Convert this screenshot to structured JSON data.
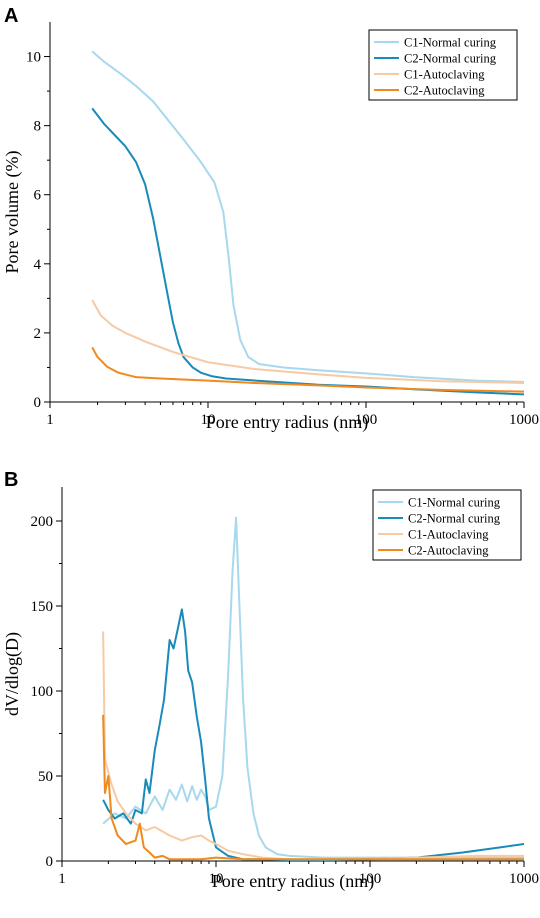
{
  "chart_data": [
    {
      "panel": "A",
      "type": "line",
      "xlabel": "Pore entry radius (nm)",
      "ylabel": "Pore volume (%)",
      "x_scale": "log",
      "xlim": [
        1,
        1000
      ],
      "ylim": [
        0,
        11
      ],
      "x_ticks": [
        1,
        10,
        100,
        1000
      ],
      "x_tick_labels": [
        "1",
        "10",
        "100",
        "1000"
      ],
      "y_ticks": [
        0,
        2,
        4,
        6,
        8,
        10
      ],
      "y_tick_labels": [
        "0",
        "2",
        "4",
        "6",
        "8",
        "10"
      ],
      "legend_position": "top-right",
      "grid": false,
      "series": [
        {
          "name": "C1-Normal curing",
          "color": "#a8d8ee",
          "x": [
            1.85,
            2.2,
            2.8,
            3.5,
            4.5,
            5.5,
            7,
            9,
            11,
            12.5,
            13.5,
            14.5,
            16,
            18,
            21,
            30,
            50,
            100,
            200,
            500,
            1000
          ],
          "y": [
            10.15,
            9.85,
            9.5,
            9.15,
            8.7,
            8.2,
            7.6,
            6.95,
            6.35,
            5.5,
            4.2,
            2.8,
            1.8,
            1.3,
            1.1,
            1.0,
            0.92,
            0.83,
            0.72,
            0.62,
            0.58
          ]
        },
        {
          "name": "C2-Normal curing",
          "color": "#1a8ab8",
          "x": [
            1.85,
            2.2,
            2.6,
            3.0,
            3.5,
            4.0,
            4.5,
            5.0,
            5.5,
            6.0,
            6.5,
            7.0,
            8.0,
            9.0,
            10.5,
            13,
            20,
            50,
            100,
            200,
            500,
            1000
          ],
          "y": [
            8.5,
            8.05,
            7.7,
            7.4,
            6.95,
            6.3,
            5.3,
            4.2,
            3.2,
            2.3,
            1.7,
            1.3,
            1.0,
            0.85,
            0.75,
            0.68,
            0.62,
            0.5,
            0.45,
            0.37,
            0.28,
            0.22
          ]
        },
        {
          "name": "C1-Autoclaving",
          "color": "#f6caa4",
          "x": [
            1.85,
            2.1,
            2.5,
            3.0,
            4.0,
            6.0,
            10,
            20,
            50,
            100,
            300,
            1000
          ],
          "y": [
            2.95,
            2.5,
            2.2,
            2.0,
            1.75,
            1.45,
            1.15,
            0.95,
            0.8,
            0.7,
            0.6,
            0.55
          ]
        },
        {
          "name": "C2-Autoclaving",
          "color": "#f08a1e",
          "x": [
            1.85,
            2.0,
            2.3,
            2.7,
            3.5,
            5.0,
            10,
            20,
            50,
            100,
            300,
            1000
          ],
          "y": [
            1.58,
            1.3,
            1.02,
            0.85,
            0.72,
            0.68,
            0.62,
            0.55,
            0.48,
            0.42,
            0.35,
            0.3
          ]
        }
      ]
    },
    {
      "panel": "B",
      "type": "line",
      "xlabel": "Pore entry radius (nm)",
      "ylabel": "dV/dlog(D)",
      "x_scale": "log",
      "xlim": [
        1,
        1000
      ],
      "ylim": [
        0,
        220
      ],
      "x_ticks": [
        1,
        10,
        100,
        1000
      ],
      "x_tick_labels": [
        "1",
        "10",
        "100",
        "1000"
      ],
      "y_ticks": [
        0,
        50,
        100,
        150,
        200
      ],
      "y_tick_labels": [
        "0",
        "50",
        "100",
        "150",
        "200"
      ],
      "legend_position": "top-right",
      "grid": false,
      "series": [
        {
          "name": "C1-Normal curing",
          "color": "#a8d8ee",
          "x": [
            1.85,
            2.2,
            2.6,
            3.0,
            3.5,
            4.0,
            4.5,
            5.0,
            5.5,
            6.0,
            6.5,
            7.0,
            7.5,
            8.0,
            8.5,
            9.0,
            10,
            11,
            12,
            12.8,
            13.5,
            14.2,
            15,
            16,
            17.5,
            19,
            21,
            25,
            30,
            50,
            100,
            200,
            500,
            1000
          ],
          "y": [
            22,
            28,
            25,
            32,
            28,
            38,
            30,
            42,
            36,
            45,
            35,
            44,
            36,
            42,
            38,
            30,
            32,
            50,
            110,
            170,
            202,
            150,
            95,
            55,
            28,
            15,
            8,
            4,
            3,
            2,
            2,
            2,
            2,
            2
          ]
        },
        {
          "name": "C2-Normal curing",
          "color": "#1a8ab8",
          "x": [
            1.85,
            2.0,
            2.2,
            2.5,
            2.8,
            3.0,
            3.3,
            3.5,
            3.7,
            4.0,
            4.3,
            4.6,
            5.0,
            5.3,
            5.6,
            6.0,
            6.3,
            6.6,
            7.0,
            7.5,
            8.0,
            8.5,
            9.0,
            10,
            12,
            15,
            20,
            30,
            50,
            100,
            200,
            400,
            700,
            1000
          ],
          "y": [
            36,
            30,
            25,
            28,
            22,
            30,
            28,
            48,
            40,
            65,
            80,
            95,
            130,
            125,
            135,
            148,
            135,
            112,
            105,
            85,
            70,
            48,
            25,
            8,
            3,
            1,
            1,
            0.5,
            0.5,
            1,
            2,
            5,
            8,
            10
          ]
        },
        {
          "name": "C1-Autoclaving",
          "color": "#f6caa4",
          "x": [
            1.85,
            1.9,
            2.0,
            2.1,
            2.3,
            2.6,
            3.0,
            3.5,
            4.0,
            5.0,
            6.0,
            7.0,
            8.0,
            9.0,
            10,
            12,
            15,
            20,
            30,
            60,
            100,
            200,
            500,
            1000
          ],
          "y": [
            135,
            60,
            52,
            45,
            35,
            28,
            22,
            18,
            20,
            15,
            12,
            14,
            15,
            12,
            10,
            6,
            4,
            2,
            1,
            1,
            1,
            2,
            3,
            3
          ]
        },
        {
          "name": "C2-Autoclaving",
          "color": "#f08a1e",
          "x": [
            1.85,
            1.9,
            2.0,
            2.1,
            2.3,
            2.6,
            3.0,
            3.2,
            3.4,
            3.7,
            4.0,
            4.5,
            5.0,
            6.0,
            8.0,
            10,
            15,
            20,
            40,
            100,
            200,
            1000
          ],
          "y": [
            86,
            40,
            50,
            25,
            15,
            10,
            12,
            22,
            8,
            5,
            2,
            3,
            1,
            1,
            1,
            2,
            1,
            1,
            1,
            1,
            1,
            1
          ]
        }
      ]
    }
  ]
}
